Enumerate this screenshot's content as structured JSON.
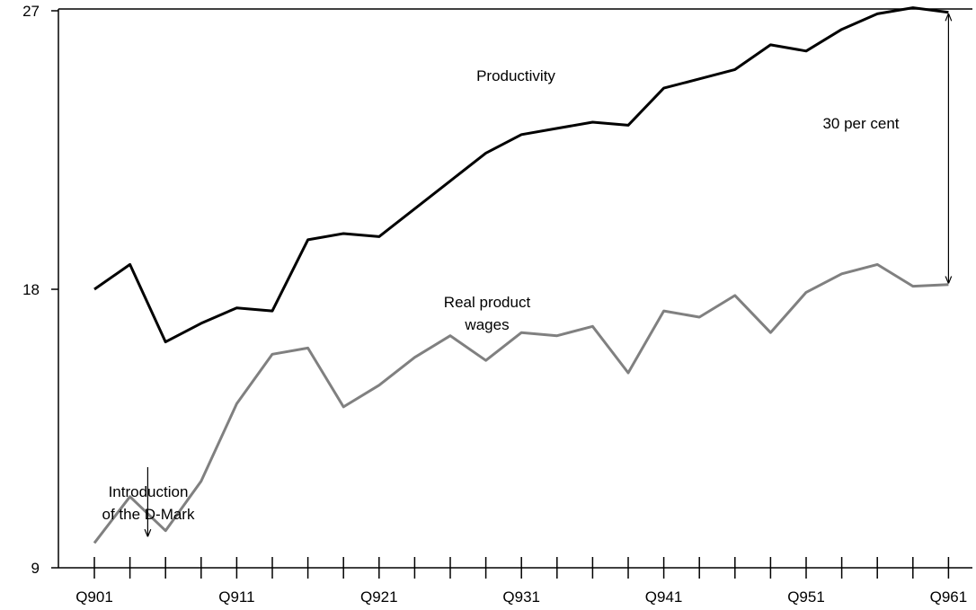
{
  "chart_data": {
    "type": "line",
    "title": "",
    "xlabel": "",
    "ylabel": "",
    "ylim": [
      9,
      27
    ],
    "yticks": [
      9,
      18,
      27
    ],
    "ytick_labels": [
      "9",
      "18",
      "27"
    ],
    "xtick_labels": [
      "Q901",
      "Q911",
      "Q921",
      "Q931",
      "Q941",
      "Q951",
      "Q961"
    ],
    "xtick_label_indices": [
      0,
      4,
      8,
      12,
      16,
      20,
      24
    ],
    "x_count": 25,
    "grid": false,
    "series": [
      {
        "color": "#000000",
        "values": [
          18.0,
          18.8,
          16.3,
          16.9,
          17.4,
          17.3,
          19.6,
          19.8,
          19.7,
          20.6,
          21.5,
          22.4,
          23.0,
          23.2,
          23.4,
          23.3,
          24.5,
          24.8,
          25.1,
          25.9,
          25.7,
          26.4,
          26.9,
          27.1,
          26.95
        ],
        "color_note": "black"
      },
      {
        "color": "#808080",
        "values": [
          9.8,
          11.3,
          10.2,
          11.8,
          14.3,
          15.9,
          16.1,
          14.2,
          14.9,
          15.8,
          16.5,
          15.7,
          16.6,
          16.5,
          16.8,
          15.3,
          17.3,
          17.1,
          17.8,
          16.6,
          17.9,
          18.5,
          18.8,
          18.1,
          18.15
        ]
      }
    ],
    "annotations": {
      "productivity_label": "Productivity",
      "wages_label_line1": "Real product",
      "wages_label_line2": "wages",
      "gap_label": "30 per cent",
      "dmark_line1": "Introduction",
      "dmark_line2": "of the D-Mark"
    }
  }
}
